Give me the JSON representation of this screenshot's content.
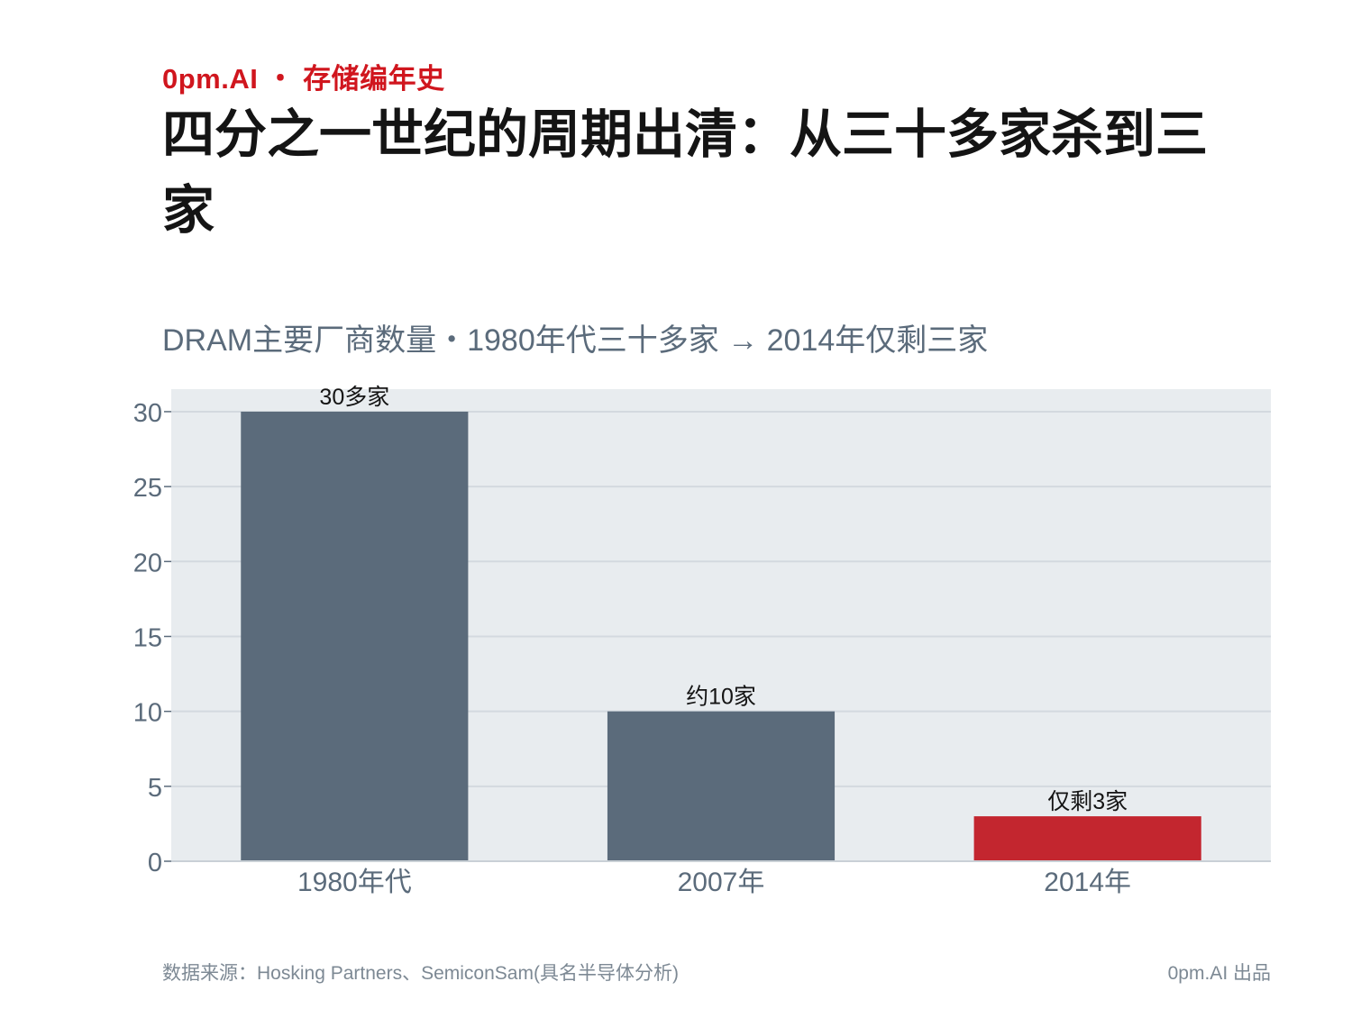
{
  "header": {
    "brand": "0pm.AI ・ 存储编年史",
    "title": "四分之一世纪的周期出清：从三十多家杀到三家",
    "subtitle": "DRAM主要厂商数量・1980年代三十多家 → 2014年仅剩三家"
  },
  "footer": {
    "source": "数据来源：Hosking Partners、SemiconSam(具名半导体分析)",
    "credit": "0pm.AI 出品"
  },
  "colors": {
    "bar_default": "#5b6b7b",
    "bar_highlight": "#c3262f",
    "plot_background": "#e8ecef",
    "grid": "#d3d9df",
    "axis_text": "#5b6b7b",
    "brand": "#d0161e"
  },
  "chart_data": {
    "type": "bar",
    "categories": [
      "1980年代",
      "2007年",
      "2014年"
    ],
    "values": [
      30,
      10,
      3
    ],
    "data_labels": [
      "30多家",
      "约10家",
      "仅剩3家"
    ],
    "highlight_index": 2,
    "yticks": [
      0,
      5,
      10,
      15,
      20,
      25,
      30
    ],
    "ylim": [
      0,
      31.5
    ],
    "grid": true,
    "legend": "none"
  }
}
